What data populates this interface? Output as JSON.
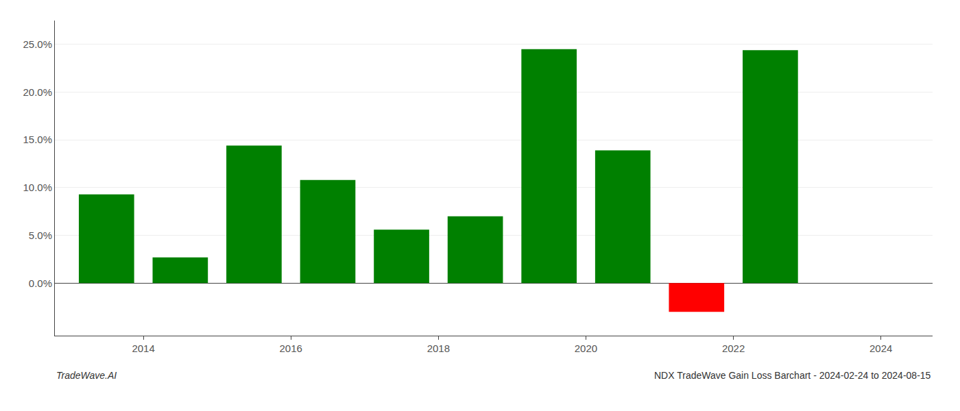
{
  "chart_data": {
    "type": "bar",
    "title": "NDX TradeWave Gain Loss Barchart - 2024-02-24 to 2024-08-15",
    "x": [
      2013,
      2014,
      2015,
      2016,
      2017,
      2018,
      2019,
      2020,
      2021,
      2022
    ],
    "values": [
      0.093,
      0.027,
      0.144,
      0.108,
      0.056,
      0.07,
      0.245,
      0.139,
      -0.03,
      0.244
    ],
    "colors": [
      "#008000",
      "#008000",
      "#008000",
      "#008000",
      "#008000",
      "#008000",
      "#008000",
      "#008000",
      "#ff0000",
      "#008000"
    ],
    "xlim": [
      2012.3,
      2024.2
    ],
    "xticks": [
      {
        "value": 2013.5,
        "label": "2014"
      },
      {
        "value": 2015.5,
        "label": "2016"
      },
      {
        "value": 2017.5,
        "label": "2018"
      },
      {
        "value": 2019.5,
        "label": "2020"
      },
      {
        "value": 2021.5,
        "label": "2022"
      },
      {
        "value": 2023.5,
        "label": "2024"
      }
    ],
    "ylim": [
      -0.055,
      0.275
    ],
    "yticks": [
      {
        "value": 0.0,
        "label": "0.0%"
      },
      {
        "value": 0.05,
        "label": "5.0%"
      },
      {
        "value": 0.1,
        "label": "10.0%"
      },
      {
        "value": 0.15,
        "label": "15.0%"
      },
      {
        "value": 0.2,
        "label": "20.0%"
      },
      {
        "value": 0.25,
        "label": "25.0%"
      }
    ],
    "grid": true,
    "annotations": [
      "TradeWave.AI"
    ]
  }
}
